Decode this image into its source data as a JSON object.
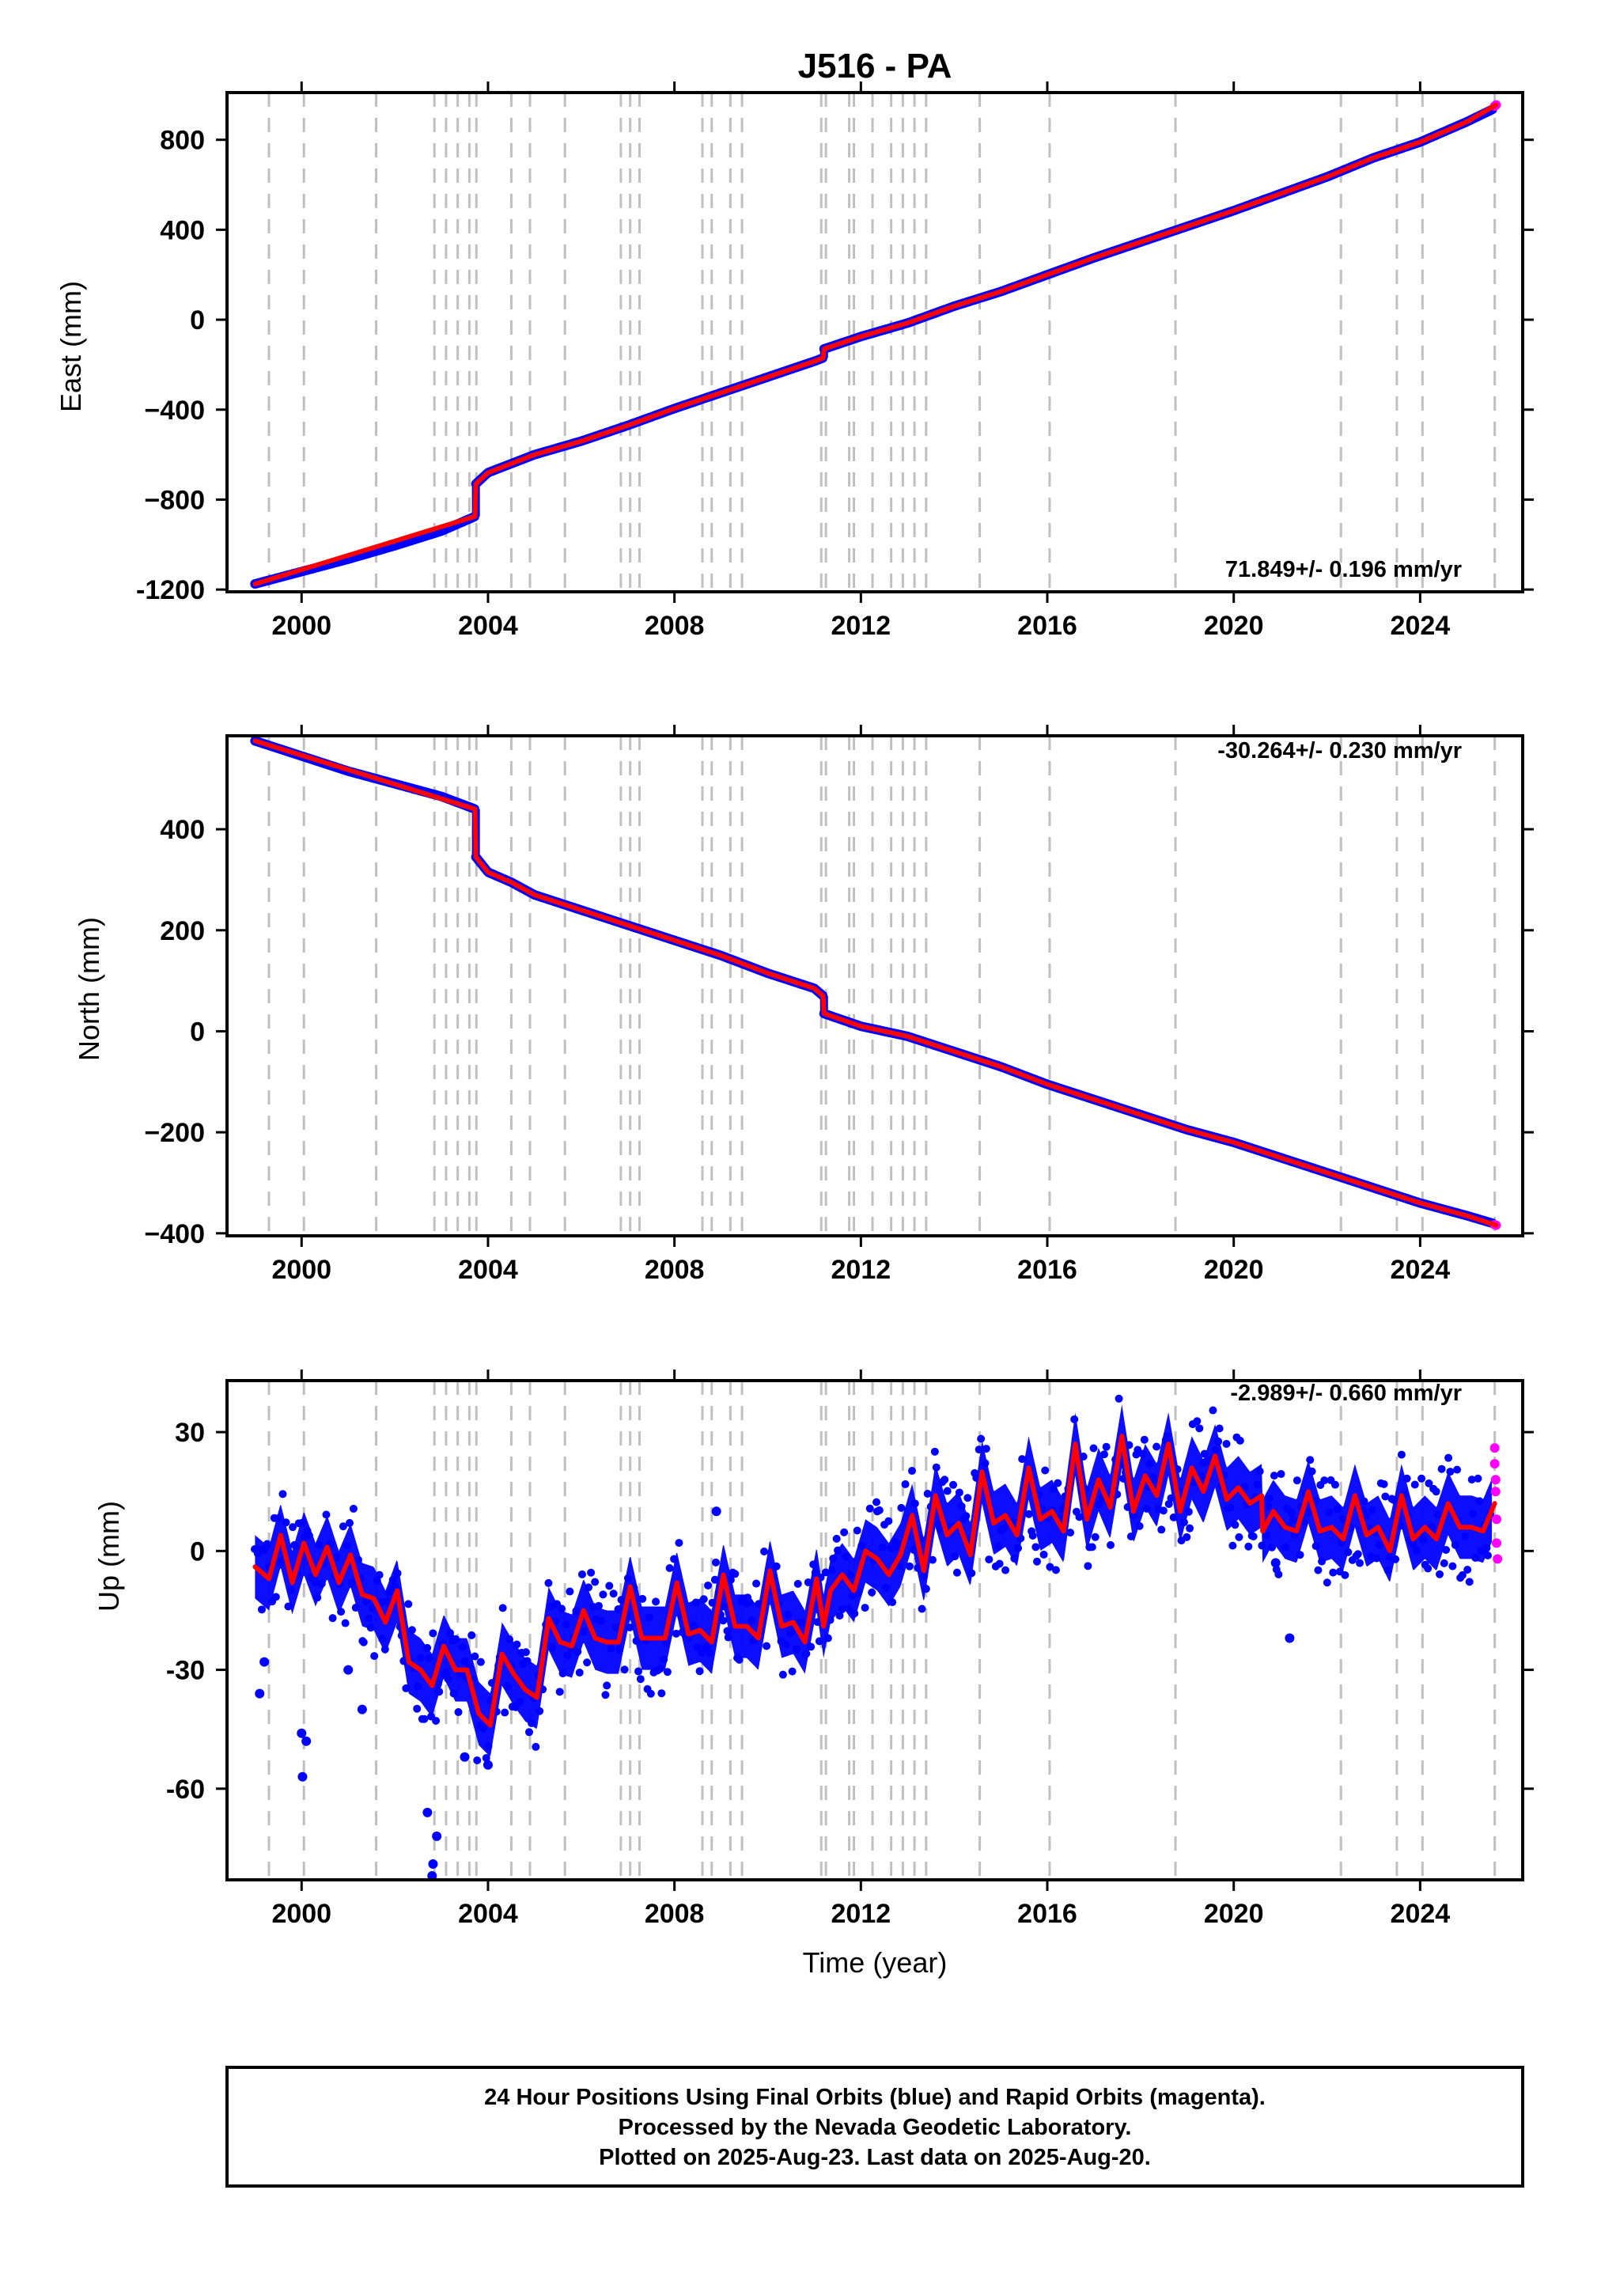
{
  "title": "J516 - PA",
  "xlabel": "Time (year)",
  "caption": [
    "24 Hour Positions Using Final Orbits (blue) and Rapid Orbits (magenta).",
    "Processed by the Nevada Geodetic Laboratory.",
    "Plotted on 2025-Aug-23. Last data on 2025-Aug-20."
  ],
  "colors": {
    "final_orbits": "#0000ff",
    "rapid_orbits": "#ff00ff",
    "model": "#ff0000",
    "events": "#c0c0c0",
    "frame": "#000000"
  },
  "chart_data": [
    {
      "type": "scatter",
      "panel": "east",
      "title": "J516 - PA",
      "xlabel": "",
      "ylabel": "East (mm)",
      "xlim": [
        1998.4,
        2026.2
      ],
      "ylim": [
        -1210,
        1010
      ],
      "xticks": [
        2000,
        2004,
        2008,
        2012,
        2016,
        2020,
        2024
      ],
      "yticks": [
        -1200,
        -800,
        -400,
        0,
        400,
        800
      ],
      "ytick_labels": [
        "-1200",
        "−800",
        "−400",
        "0",
        "400",
        "800"
      ],
      "rate_text": "71.849+/- 0.196 mm/yr",
      "rate_position": "bottom-right",
      "event_lines": [
        1999.3,
        2000.05,
        2001.6,
        2002.85,
        2003.1,
        2003.35,
        2003.6,
        2003.75,
        2004.5,
        2004.9,
        2005.65,
        2006.85,
        2007.05,
        2007.25,
        2008.6,
        2008.8,
        2009.2,
        2009.45,
        2011.15,
        2011.25,
        2011.75,
        2011.85,
        2012.25,
        2012.65,
        2012.9,
        2013.15,
        2013.4,
        2014.55,
        2016.05,
        2018.75,
        2022.3,
        2023.5,
        2024.05,
        2025.6
      ],
      "series": [
        {
          "name": "Final Orbits",
          "style": "points",
          "color": "#0000ff",
          "x": [
            1999.0,
            2000.0,
            2001.0,
            2002.0,
            2003.0,
            2003.72,
            2003.74,
            2004.0,
            2004.5,
            2005.0,
            2006.0,
            2007.0,
            2008.0,
            2009.0,
            2010.0,
            2011.0,
            2011.19,
            2011.21,
            2012.0,
            2013.0,
            2014.0,
            2015.0,
            2016.0,
            2017.0,
            2018.0,
            2019.0,
            2020.0,
            2021.0,
            2022.0,
            2023.0,
            2024.0,
            2025.0,
            2025.55
          ],
          "y": [
            -1175,
            -1120,
            -1065,
            -1005,
            -940,
            -875,
            -730,
            -680,
            -640,
            -600,
            -540,
            -470,
            -395,
            -325,
            -255,
            -185,
            -170,
            -130,
            -75,
            -15,
            60,
            125,
            200,
            275,
            345,
            415,
            485,
            560,
            635,
            720,
            790,
            880,
            935
          ]
        },
        {
          "name": "Rapid Orbits",
          "style": "points",
          "color": "#ff00ff",
          "x": [
            2025.6,
            2025.63
          ],
          "y": [
            950,
            955
          ]
        },
        {
          "name": "Model",
          "style": "line",
          "color": "#ff0000",
          "x": [
            1999.0,
            2003.72,
            2003.74,
            2004.0,
            2004.5,
            2005.0,
            2006.0,
            2007.0,
            2008.0,
            2009.0,
            2010.0,
            2011.0,
            2011.19,
            2011.21,
            2012.0,
            2013.0,
            2014.0,
            2015.0,
            2016.0,
            2017.0,
            2018.0,
            2019.0,
            2020.0,
            2021.0,
            2022.0,
            2023.0,
            2024.0,
            2025.0,
            2025.63
          ],
          "y": [
            -1175,
            -875,
            -730,
            -680,
            -640,
            -600,
            -540,
            -470,
            -395,
            -325,
            -255,
            -185,
            -170,
            -130,
            -75,
            -15,
            60,
            125,
            200,
            275,
            345,
            415,
            485,
            560,
            635,
            720,
            790,
            880,
            955
          ]
        }
      ]
    },
    {
      "type": "scatter",
      "panel": "north",
      "xlabel": "",
      "ylabel": "North (mm)",
      "xlim": [
        1998.4,
        2026.2
      ],
      "ylim": [
        -405,
        585
      ],
      "xticks": [
        2000,
        2004,
        2008,
        2012,
        2016,
        2020,
        2024
      ],
      "yticks": [
        -400,
        -200,
        0,
        200,
        400
      ],
      "ytick_labels": [
        "−400",
        "−200",
        "0",
        "200",
        "400"
      ],
      "rate_text": "-30.264+/- 0.230 mm/yr",
      "rate_position": "top-right",
      "event_lines": [
        1999.3,
        2000.05,
        2001.6,
        2002.85,
        2003.1,
        2003.35,
        2003.6,
        2003.75,
        2004.5,
        2004.9,
        2005.65,
        2006.85,
        2007.05,
        2007.25,
        2008.6,
        2008.8,
        2009.2,
        2009.45,
        2011.15,
        2011.25,
        2011.75,
        2011.85,
        2012.25,
        2012.65,
        2012.9,
        2013.15,
        2013.4,
        2014.55,
        2016.05,
        2018.75,
        2022.3,
        2023.5,
        2024.05,
        2025.6
      ],
      "series": [
        {
          "name": "Final Orbits",
          "style": "points",
          "color": "#0000ff",
          "x": [
            1999.0,
            2000.0,
            2001.0,
            2002.0,
            2003.0,
            2003.72,
            2003.74,
            2004.0,
            2004.5,
            2005.0,
            2006.0,
            2007.0,
            2008.0,
            2009.0,
            2010.0,
            2011.0,
            2011.19,
            2011.21,
            2012.0,
            2013.0,
            2014.0,
            2015.0,
            2016.0,
            2017.0,
            2018.0,
            2019.0,
            2020.0,
            2021.0,
            2022.0,
            2023.0,
            2024.0,
            2025.0,
            2025.55
          ],
          "y": [
            575,
            545,
            515,
            490,
            465,
            440,
            345,
            315,
            295,
            270,
            240,
            210,
            180,
            150,
            115,
            85,
            70,
            35,
            10,
            -10,
            -40,
            -70,
            -105,
            -135,
            -165,
            -195,
            -220,
            -250,
            -280,
            -310,
            -340,
            -365,
            -380
          ]
        },
        {
          "name": "Rapid Orbits",
          "style": "points",
          "color": "#ff00ff",
          "x": [
            2025.6,
            2025.63
          ],
          "y": [
            -383,
            -384
          ]
        },
        {
          "name": "Model",
          "style": "line",
          "color": "#ff0000",
          "x": [
            1999.0,
            2003.72,
            2003.74,
            2004.0,
            2004.5,
            2005.0,
            2006.0,
            2007.0,
            2008.0,
            2009.0,
            2010.0,
            2011.0,
            2011.19,
            2011.21,
            2012.0,
            2013.0,
            2014.0,
            2015.0,
            2016.0,
            2017.0,
            2018.0,
            2019.0,
            2020.0,
            2021.0,
            2022.0,
            2023.0,
            2024.0,
            2025.0,
            2025.63
          ],
          "y": [
            575,
            440,
            345,
            315,
            295,
            270,
            240,
            210,
            180,
            150,
            115,
            85,
            70,
            35,
            10,
            -10,
            -40,
            -70,
            -105,
            -135,
            -165,
            -195,
            -220,
            -250,
            -280,
            -310,
            -340,
            -365,
            -384
          ]
        }
      ]
    },
    {
      "type": "scatter",
      "panel": "up",
      "xlabel": "Time (year)",
      "ylabel": "Up (mm)",
      "xlim": [
        1998.4,
        2026.2
      ],
      "ylim": [
        -83,
        43
      ],
      "xticks": [
        2000,
        2004,
        2008,
        2012,
        2016,
        2020,
        2024
      ],
      "yticks": [
        -60,
        -30,
        0,
        30
      ],
      "ytick_labels": [
        "-60",
        "-30",
        "0",
        "30"
      ],
      "rate_text": "-2.989+/- 0.660 mm/yr",
      "rate_position": "top-right",
      "event_lines": [
        1999.3,
        2000.05,
        2001.6,
        2002.85,
        2003.1,
        2003.35,
        2003.6,
        2003.75,
        2004.5,
        2004.9,
        2005.65,
        2006.85,
        2007.05,
        2007.25,
        2008.6,
        2008.8,
        2009.2,
        2009.45,
        2011.15,
        2011.25,
        2011.75,
        2011.85,
        2012.25,
        2012.65,
        2012.9,
        2013.15,
        2013.4,
        2014.55,
        2016.05,
        2018.75,
        2022.3,
        2023.5,
        2024.05,
        2025.6
      ],
      "series": [
        {
          "name": "Model",
          "style": "line",
          "color": "#ff0000",
          "x": [
            1999.0,
            1999.3,
            1999.55,
            1999.8,
            2000.05,
            2000.3,
            2000.55,
            2000.8,
            2001.05,
            2001.3,
            2001.55,
            2001.8,
            2002.05,
            2002.3,
            2002.55,
            2002.8,
            2003.05,
            2003.3,
            2003.55,
            2003.8,
            2004.05,
            2004.3,
            2004.55,
            2004.8,
            2005.05,
            2005.3,
            2005.55,
            2005.8,
            2006.05,
            2006.3,
            2006.55,
            2006.8,
            2007.05,
            2007.3,
            2007.55,
            2007.8,
            2008.05,
            2008.3,
            2008.55,
            2008.8,
            2009.05,
            2009.3,
            2009.55,
            2009.8,
            2010.05,
            2010.3,
            2010.55,
            2010.8,
            2011.05,
            2011.2,
            2011.35,
            2011.6,
            2011.85,
            2012.1,
            2012.35,
            2012.6,
            2012.85,
            2013.1,
            2013.35,
            2013.6,
            2013.85,
            2014.1,
            2014.35,
            2014.6,
            2014.85,
            2015.1,
            2015.35,
            2015.6,
            2015.85,
            2016.1,
            2016.35,
            2016.6,
            2016.85,
            2017.1,
            2017.35,
            2017.6,
            2017.85,
            2018.1,
            2018.35,
            2018.6,
            2018.85,
            2019.1,
            2019.35,
            2019.6,
            2019.85,
            2020.1,
            2020.35,
            2020.6,
            2020.62,
            2020.85,
            2021.1,
            2021.35,
            2021.6,
            2021.85,
            2022.1,
            2022.35,
            2022.6,
            2022.85,
            2023.1,
            2023.35,
            2023.6,
            2023.85,
            2024.1,
            2024.35,
            2024.6,
            2024.85,
            2025.1,
            2025.35,
            2025.6
          ],
          "y": [
            -4,
            -7,
            4,
            -8,
            2,
            -6,
            1,
            -8,
            -1,
            -11,
            -12,
            -18,
            -10,
            -28,
            -30,
            -34,
            -24,
            -30,
            -30,
            -41,
            -44,
            -26,
            -31,
            -35,
            -37,
            -17,
            -23,
            -24,
            -15,
            -22,
            -23,
            -23,
            -9,
            -22,
            -22,
            -22,
            -8,
            -21,
            -20,
            -23,
            -6,
            -19,
            -19,
            -22,
            -5,
            -19,
            -18,
            -23,
            -7,
            -19,
            -10,
            -6,
            -10,
            0,
            -2,
            -6,
            -1,
            9,
            -5,
            14,
            4,
            7,
            -1,
            20,
            7,
            9,
            4,
            21,
            8,
            10,
            5,
            27,
            8,
            18,
            11,
            29,
            10,
            19,
            14,
            27,
            10,
            21,
            15,
            24,
            13,
            16,
            12,
            14,
            5,
            10,
            6,
            5,
            15,
            5,
            6,
            3,
            14,
            4,
            6,
            0,
            14,
            3,
            6,
            3,
            12,
            6,
            6,
            5,
            12
          ]
        },
        {
          "name": "Final Orbits scatter (±1σ band)",
          "style": "band",
          "color": "#0000ff",
          "halfwidth": 8
        },
        {
          "name": "Rapid Orbits",
          "style": "points",
          "color": "#ff00ff",
          "x": [
            2025.6,
            2025.6,
            2025.62,
            2025.62,
            2025.64,
            2025.64,
            2025.66
          ],
          "y": [
            26,
            22,
            18,
            15,
            8,
            2,
            -2
          ]
        },
        {
          "name": "Outliers",
          "style": "points",
          "color": "#0000ff",
          "x": [
            1999.1,
            1999.2,
            2000.0,
            2000.02,
            2000.1,
            2001.0,
            2001.3,
            2002.7,
            2002.8,
            2002.82,
            2002.9,
            2003.5,
            2004.0,
            2008.9,
            2010.5,
            2020.9,
            2021.2
          ],
          "y": [
            -36,
            -28,
            -46,
            -57,
            -48,
            -30,
            -40,
            -66,
            -82,
            -79,
            -72,
            -52,
            -54,
            10,
            -20,
            -3,
            -22
          ]
        }
      ]
    }
  ]
}
